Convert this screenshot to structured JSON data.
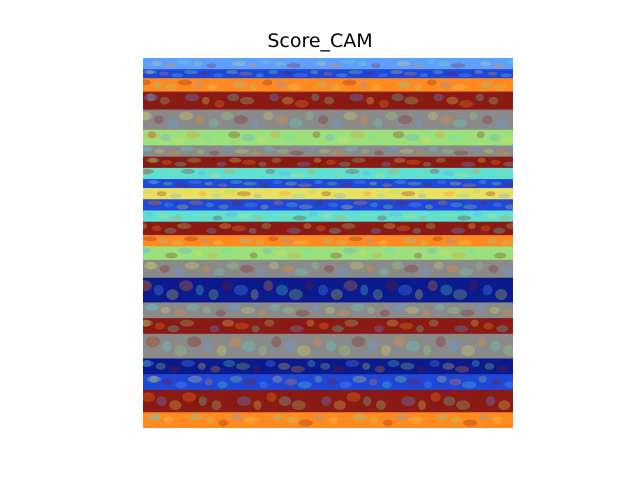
{
  "figure": {
    "title": "Score_CAM"
  },
  "image": {
    "kind": "score-cam-overlay",
    "colormap": "jet",
    "palette": {
      "dark_blue": "#0b1a8c",
      "blue": "#1f47d8",
      "light_blue": "#5fa0ff",
      "cyan": "#5fe0d0",
      "green": "#9be07a",
      "yellow": "#e8e060",
      "orange": "#ff8a20",
      "red": "#c0281c",
      "dark_red": "#8a1a14",
      "gray": "#8a8a8a"
    },
    "bands": [
      {
        "color": "light_blue"
      },
      {
        "color": "blue"
      },
      {
        "color": "orange"
      },
      {
        "color": "dark_red"
      },
      {
        "color": "gray"
      },
      {
        "color": "green"
      },
      {
        "color": "gray"
      },
      {
        "color": "dark_red"
      },
      {
        "color": "cyan"
      },
      {
        "color": "blue"
      },
      {
        "color": "yellow"
      },
      {
        "color": "blue"
      },
      {
        "color": "cyan"
      },
      {
        "color": "dark_red"
      },
      {
        "color": "orange"
      },
      {
        "color": "green"
      },
      {
        "color": "gray"
      },
      {
        "color": "dark_blue"
      },
      {
        "color": "gray"
      },
      {
        "color": "dark_red"
      },
      {
        "color": "gray"
      },
      {
        "color": "dark_blue"
      },
      {
        "color": "blue"
      },
      {
        "color": "dark_red"
      },
      {
        "color": "orange"
      }
    ]
  }
}
